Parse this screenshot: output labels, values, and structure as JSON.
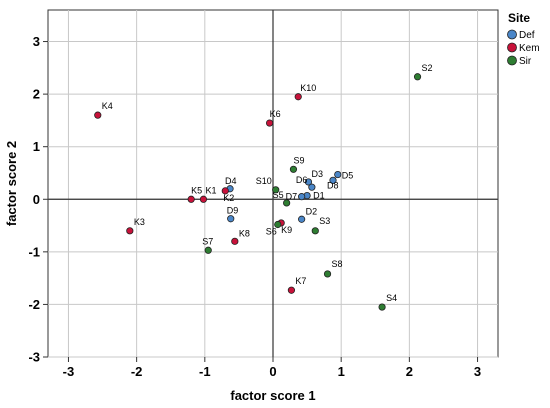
{
  "chart_data": {
    "type": "scatter",
    "xlabel": "factor score  1",
    "ylabel": "factor score  2",
    "xlim": [
      -3.3,
      3.3
    ],
    "ylim": [
      -3.0,
      3.6
    ],
    "x_ticks": [
      -3,
      -2,
      -1,
      0,
      1,
      2,
      3
    ],
    "y_ticks": [
      -3,
      -2,
      -1,
      0,
      1,
      2,
      3
    ],
    "grid": true,
    "reference_lines": {
      "x": 0,
      "y": 0
    },
    "legend": {
      "title": "Site",
      "placement": "top-right",
      "entries": [
        {
          "name": "Def",
          "color": "#4a86c8"
        },
        {
          "name": "Kem",
          "color": "#c8123a"
        },
        {
          "name": "Sir",
          "color": "#2e7d32"
        }
      ]
    },
    "series": [
      {
        "name": "Def",
        "color": "#4a86c8",
        "points": [
          {
            "label": "D1",
            "x": 0.5,
            "y": 0.07
          },
          {
            "label": "D2",
            "x": 0.42,
            "y": -0.38
          },
          {
            "label": "D3",
            "x": 0.52,
            "y": 0.33
          },
          {
            "label": "D4",
            "x": -0.63,
            "y": 0.2
          },
          {
            "label": "D5",
            "x": 0.95,
            "y": 0.47
          },
          {
            "label": "D6",
            "x": 0.57,
            "y": 0.23
          },
          {
            "label": "D7",
            "x": 0.42,
            "y": 0.05
          },
          {
            "label": "D8",
            "x": 0.88,
            "y": 0.36
          },
          {
            "label": "D9",
            "x": -0.62,
            "y": -0.37
          }
        ]
      },
      {
        "name": "Kem",
        "color": "#c8123a",
        "points": [
          {
            "label": "K1",
            "x": -1.02,
            "y": 0.0
          },
          {
            "label": "K2",
            "x": -0.7,
            "y": 0.16
          },
          {
            "label": "K3",
            "x": -2.1,
            "y": -0.6
          },
          {
            "label": "K4",
            "x": -2.57,
            "y": 1.6
          },
          {
            "label": "K5",
            "x": -1.2,
            "y": 0.0
          },
          {
            "label": "K6",
            "x": -0.05,
            "y": 1.45
          },
          {
            "label": "K7",
            "x": 0.27,
            "y": -1.73
          },
          {
            "label": "K8",
            "x": -0.56,
            "y": -0.8
          },
          {
            "label": "K9",
            "x": 0.12,
            "y": -0.45
          },
          {
            "label": "K10",
            "x": 0.37,
            "y": 1.95
          }
        ]
      },
      {
        "name": "Sir",
        "color": "#2e7d32",
        "points": [
          {
            "label": "S2",
            "x": 2.12,
            "y": 2.33
          },
          {
            "label": "S3",
            "x": 0.62,
            "y": -0.6
          },
          {
            "label": "S4",
            "x": 1.6,
            "y": -2.05
          },
          {
            "label": "S5",
            "x": 0.2,
            "y": -0.07
          },
          {
            "label": "S6",
            "x": 0.07,
            "y": -0.48
          },
          {
            "label": "S7",
            "x": -0.95,
            "y": -0.97
          },
          {
            "label": "S8",
            "x": 0.8,
            "y": -1.42
          },
          {
            "label": "S9",
            "x": 0.3,
            "y": 0.57
          },
          {
            "label": "S10",
            "x": 0.04,
            "y": 0.18
          }
        ]
      }
    ]
  }
}
